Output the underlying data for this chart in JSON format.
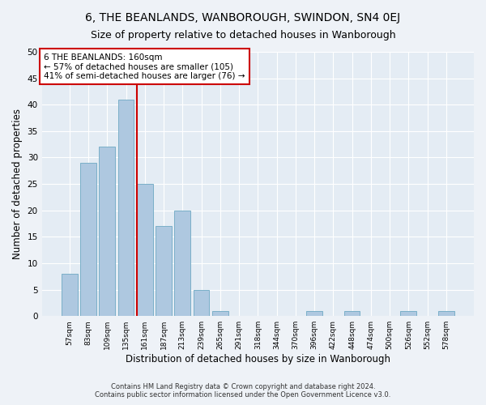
{
  "title": "6, THE BEANLANDS, WANBOROUGH, SWINDON, SN4 0EJ",
  "subtitle": "Size of property relative to detached houses in Wanborough",
  "xlabel": "Distribution of detached houses by size in Wanborough",
  "ylabel": "Number of detached properties",
  "categories": [
    "57sqm",
    "83sqm",
    "109sqm",
    "135sqm",
    "161sqm",
    "187sqm",
    "213sqm",
    "239sqm",
    "265sqm",
    "291sqm",
    "318sqm",
    "344sqm",
    "370sqm",
    "396sqm",
    "422sqm",
    "448sqm",
    "474sqm",
    "500sqm",
    "526sqm",
    "552sqm",
    "578sqm"
  ],
  "values": [
    8,
    29,
    32,
    41,
    25,
    17,
    20,
    5,
    1,
    0,
    0,
    0,
    0,
    1,
    0,
    1,
    0,
    0,
    1,
    0,
    1
  ],
  "bar_color": "#aec8e0",
  "bar_edge_color": "#7aafc8",
  "property_line_x": 4,
  "property_line_label": "6 THE BEANLANDS: 160sqm",
  "annotation_line1": "← 57% of detached houses are smaller (105)",
  "annotation_line2": "41% of semi-detached houses are larger (76) →",
  "annotation_box_color": "#cc0000",
  "ylim": [
    0,
    50
  ],
  "yticks": [
    0,
    5,
    10,
    15,
    20,
    25,
    30,
    35,
    40,
    45,
    50
  ],
  "title_fontsize": 10,
  "subtitle_fontsize": 9,
  "xlabel_fontsize": 8.5,
  "ylabel_fontsize": 8.5,
  "footer1": "Contains HM Land Registry data © Crown copyright and database right 2024.",
  "footer2": "Contains public sector information licensed under the Open Government Licence v3.0.",
  "background_color": "#eef2f7",
  "plot_bg_color": "#e4ecf4"
}
